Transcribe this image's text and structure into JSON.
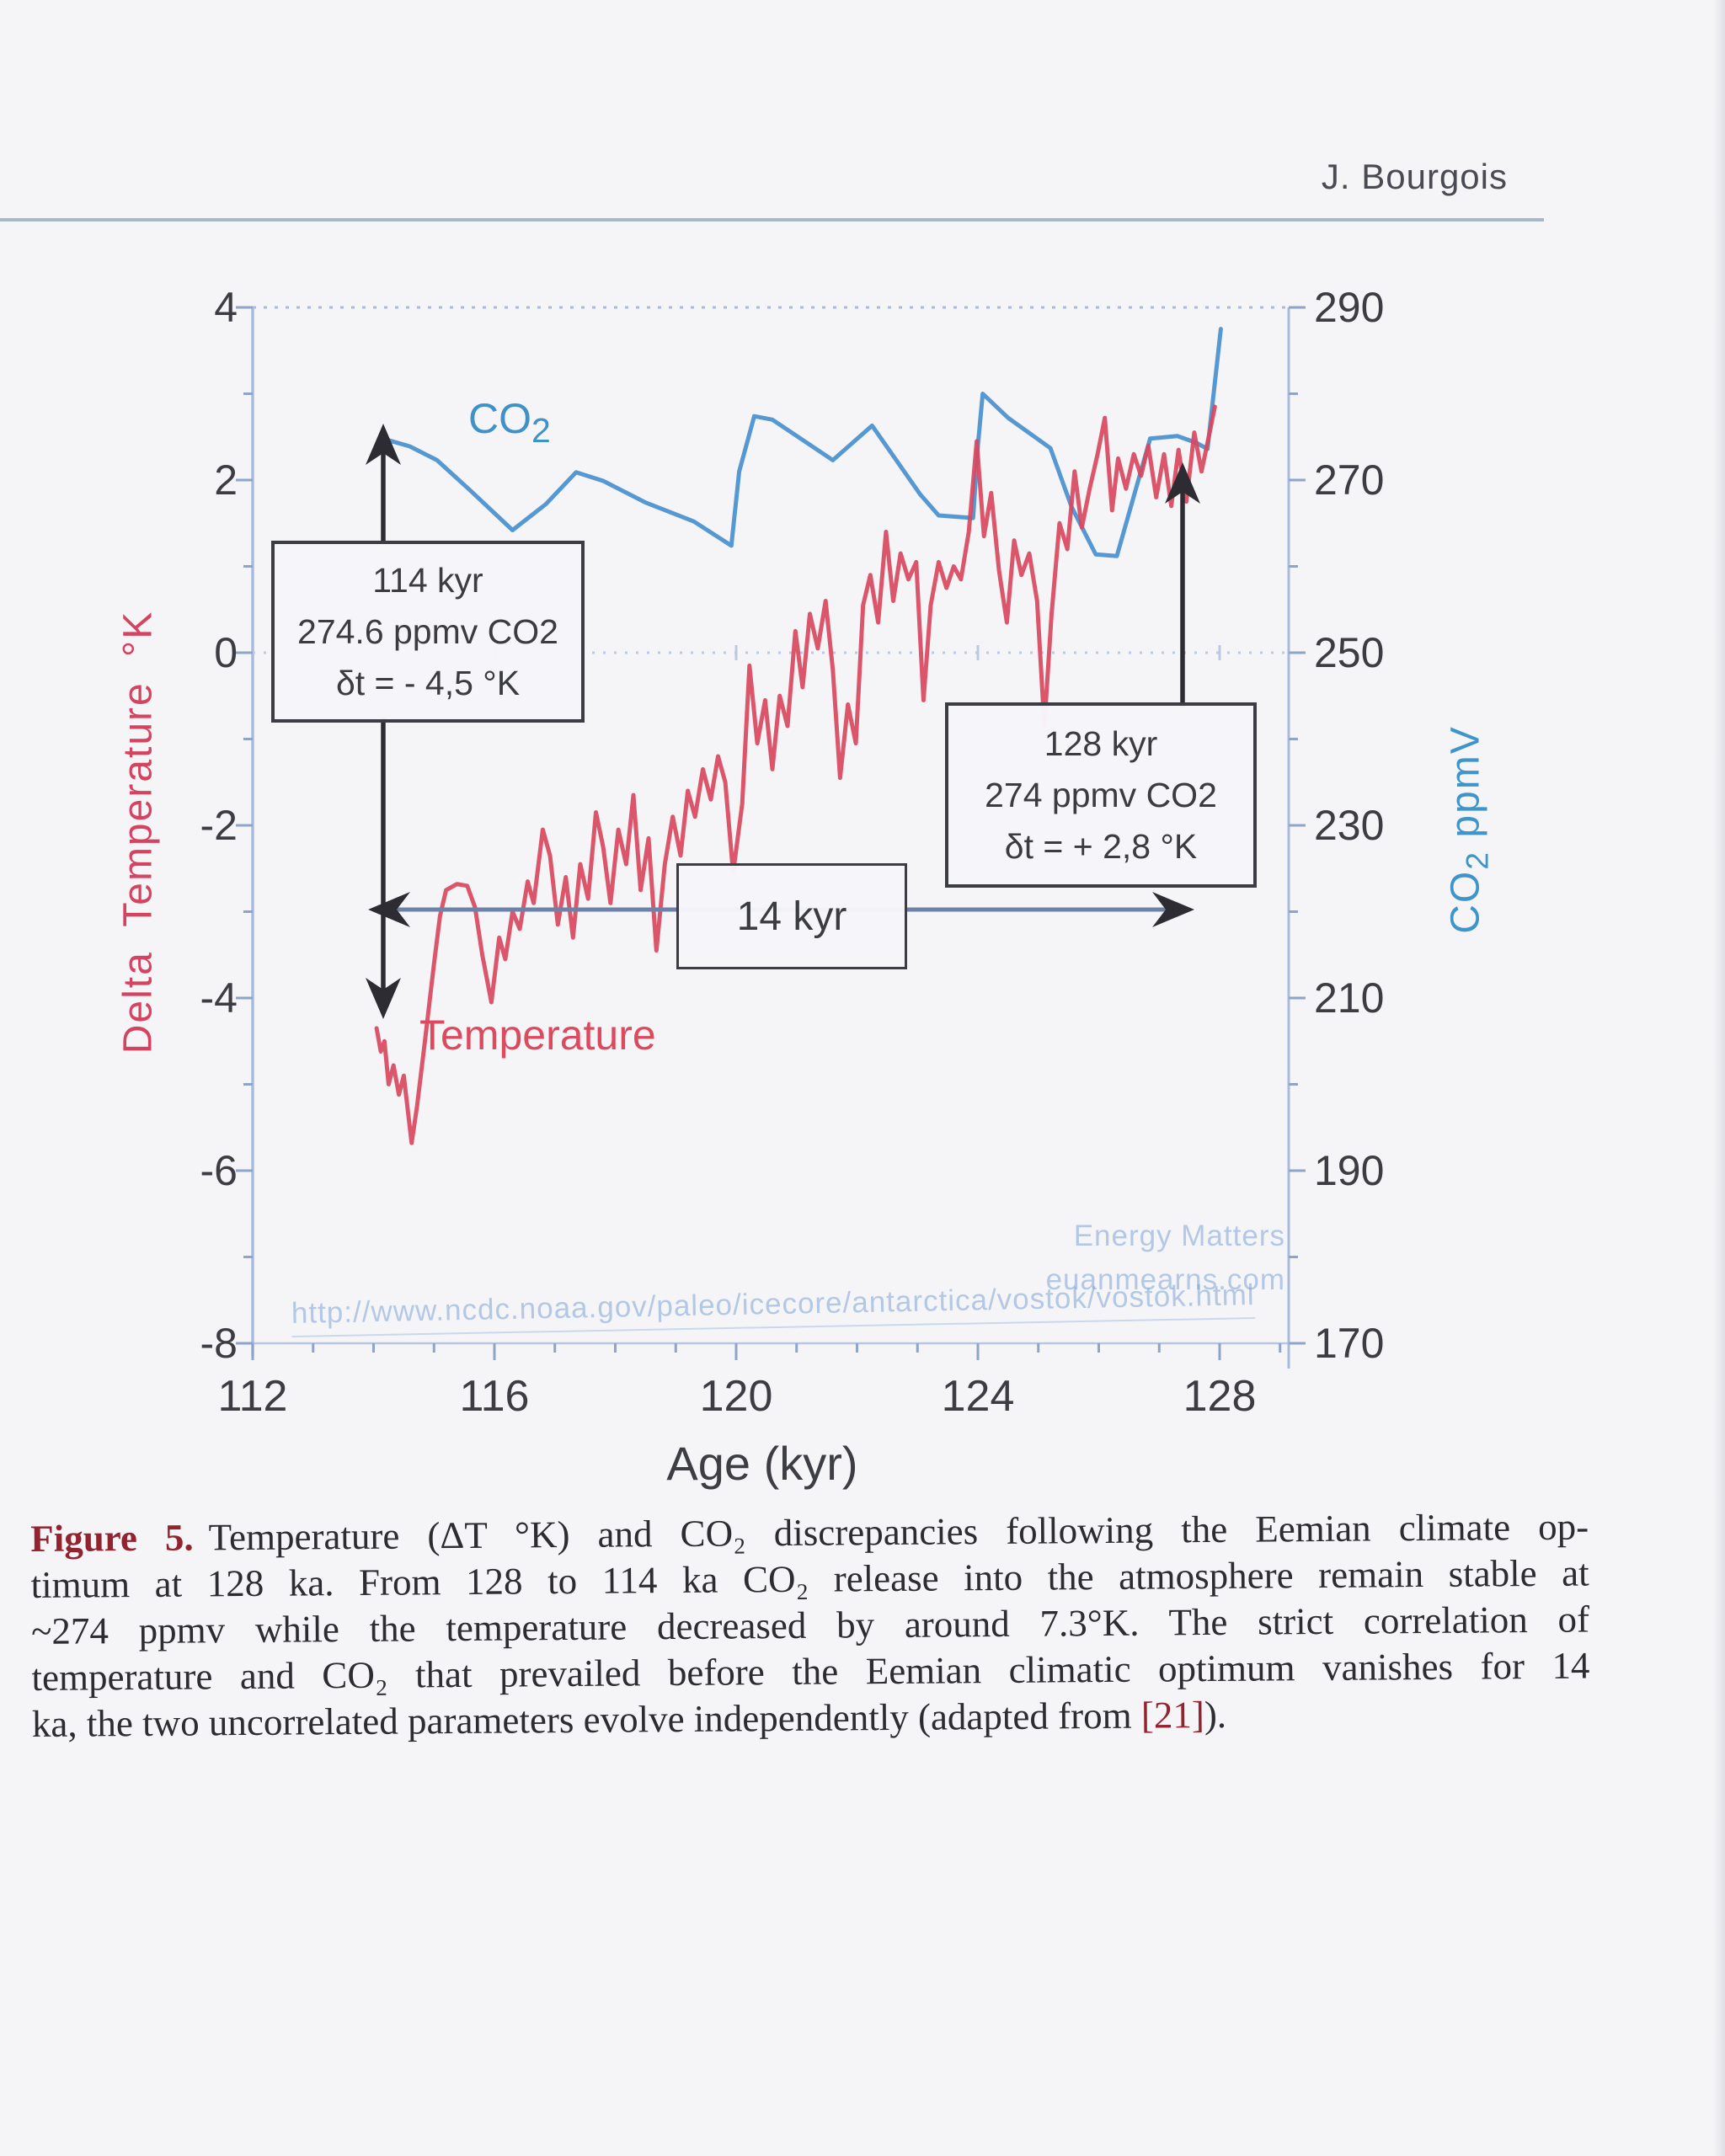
{
  "page": {
    "header": {
      "author": "J. Bourgois"
    }
  },
  "figure": {
    "labels": {
      "co2_prefix": "CO",
      "co2_sub": "2",
      "temperature": "Temperature"
    },
    "right_axis": {
      "prefix": "CO",
      "sub": "2",
      "suffix": " ppmV"
    },
    "watermark": {
      "line1": "Energy Matters",
      "line2": "euanmearns.com",
      "url": "http://www.ncdc.noaa.gov/paleo/icecore/antarctica/vostok/vostok.html"
    }
  },
  "chart_data": {
    "type": "line",
    "title": "",
    "xlabel": "Age (kyr)",
    "ylabel_left": "Delta Temperature °K",
    "ylabel_right": "CO2 ppmV",
    "x_range": [
      112,
      129.15
    ],
    "y_left_range": [
      -8,
      4
    ],
    "y_right_range": [
      170,
      290
    ],
    "x_ticks": [
      112,
      116,
      120,
      124,
      128
    ],
    "y_left_ticks": [
      4,
      2,
      0,
      -2,
      -4,
      -6,
      -8
    ],
    "y_right_ticks": [
      290,
      270,
      250,
      230,
      210,
      190,
      170
    ],
    "grid": "dashed zero line only",
    "legend_position": "inline curve labels",
    "annotations": {
      "box_114": {
        "lines": [
          "114 kyr",
          "274.6 ppmv CO2",
          "δt = - 4,5 °K"
        ]
      },
      "box_128": {
        "lines": [
          "128 kyr",
          "274 ppmv CO2",
          "δt = + 2,8 °K"
        ]
      },
      "span_label": "14 kyr"
    },
    "series": [
      {
        "name": "CO2",
        "axis": "right",
        "units": "ppmv",
        "color": "#478fce",
        "points": [
          [
            114.25,
            274.6
          ],
          [
            114.6,
            273.9
          ],
          [
            115.05,
            272.3
          ],
          [
            115.6,
            268.8
          ],
          [
            116.3,
            264.2
          ],
          [
            116.85,
            267.2
          ],
          [
            117.35,
            270.9
          ],
          [
            117.8,
            269.9
          ],
          [
            118.5,
            267.4
          ],
          [
            119.3,
            265.2
          ],
          [
            119.92,
            262.4
          ],
          [
            120.05,
            271.0
          ],
          [
            120.3,
            277.4
          ],
          [
            120.6,
            277.0
          ],
          [
            121.6,
            272.3
          ],
          [
            122.25,
            276.3
          ],
          [
            123.05,
            268.3
          ],
          [
            123.35,
            265.9
          ],
          [
            123.92,
            265.6
          ],
          [
            124.0,
            274.0
          ],
          [
            124.08,
            280.0
          ],
          [
            124.5,
            277.2
          ],
          [
            125.2,
            273.7
          ],
          [
            125.55,
            266.9
          ],
          [
            125.95,
            261.4
          ],
          [
            126.3,
            261.2
          ],
          [
            126.85,
            274.8
          ],
          [
            127.3,
            275.1
          ],
          [
            127.62,
            274.3
          ],
          [
            127.8,
            273.6
          ],
          [
            128.02,
            287.5
          ]
        ]
      },
      {
        "name": "Temperature",
        "axis": "left",
        "units": "°K",
        "color": "#d9485e",
        "points": [
          [
            114.05,
            -4.35
          ],
          [
            114.12,
            -4.62
          ],
          [
            114.18,
            -4.5
          ],
          [
            114.25,
            -5.0
          ],
          [
            114.33,
            -4.78
          ],
          [
            114.42,
            -5.12
          ],
          [
            114.5,
            -4.9
          ],
          [
            114.63,
            -5.68
          ],
          [
            114.72,
            -5.25
          ],
          [
            114.85,
            -4.5
          ],
          [
            115.0,
            -3.6
          ],
          [
            115.1,
            -3.05
          ],
          [
            115.2,
            -2.75
          ],
          [
            115.38,
            -2.68
          ],
          [
            115.55,
            -2.7
          ],
          [
            115.68,
            -2.95
          ],
          [
            115.8,
            -3.5
          ],
          [
            115.95,
            -4.05
          ],
          [
            116.08,
            -3.3
          ],
          [
            116.18,
            -3.55
          ],
          [
            116.3,
            -3.0
          ],
          [
            116.42,
            -3.2
          ],
          [
            116.55,
            -2.65
          ],
          [
            116.65,
            -2.9
          ],
          [
            116.8,
            -2.05
          ],
          [
            116.92,
            -2.35
          ],
          [
            117.05,
            -3.15
          ],
          [
            117.18,
            -2.6
          ],
          [
            117.3,
            -3.3
          ],
          [
            117.42,
            -2.45
          ],
          [
            117.55,
            -2.85
          ],
          [
            117.68,
            -1.85
          ],
          [
            117.8,
            -2.25
          ],
          [
            117.92,
            -2.9
          ],
          [
            118.05,
            -2.05
          ],
          [
            118.18,
            -2.45
          ],
          [
            118.3,
            -1.65
          ],
          [
            118.42,
            -2.75
          ],
          [
            118.55,
            -2.15
          ],
          [
            118.68,
            -3.45
          ],
          [
            118.82,
            -2.45
          ],
          [
            118.95,
            -1.9
          ],
          [
            119.08,
            -2.35
          ],
          [
            119.2,
            -1.6
          ],
          [
            119.32,
            -1.9
          ],
          [
            119.45,
            -1.35
          ],
          [
            119.58,
            -1.7
          ],
          [
            119.7,
            -1.2
          ],
          [
            119.82,
            -1.5
          ],
          [
            119.95,
            -2.55
          ],
          [
            120.1,
            -1.75
          ],
          [
            120.22,
            -0.15
          ],
          [
            120.35,
            -1.05
          ],
          [
            120.48,
            -0.55
          ],
          [
            120.6,
            -1.35
          ],
          [
            120.72,
            -0.5
          ],
          [
            120.85,
            -0.85
          ],
          [
            120.98,
            0.25
          ],
          [
            121.1,
            -0.4
          ],
          [
            121.22,
            0.45
          ],
          [
            121.35,
            0.05
          ],
          [
            121.48,
            0.6
          ],
          [
            121.6,
            -0.2
          ],
          [
            121.72,
            -1.45
          ],
          [
            121.85,
            -0.6
          ],
          [
            121.98,
            -1.05
          ],
          [
            122.1,
            0.55
          ],
          [
            122.22,
            0.9
          ],
          [
            122.35,
            0.35
          ],
          [
            122.48,
            1.4
          ],
          [
            122.6,
            0.6
          ],
          [
            122.72,
            1.15
          ],
          [
            122.85,
            0.85
          ],
          [
            122.98,
            1.05
          ],
          [
            123.1,
            -0.55
          ],
          [
            123.22,
            0.55
          ],
          [
            123.35,
            1.05
          ],
          [
            123.48,
            0.75
          ],
          [
            123.6,
            1.0
          ],
          [
            123.72,
            0.85
          ],
          [
            123.85,
            1.4
          ],
          [
            123.98,
            2.45
          ],
          [
            124.1,
            1.35
          ],
          [
            124.22,
            1.85
          ],
          [
            124.35,
            0.95
          ],
          [
            124.48,
            0.35
          ],
          [
            124.6,
            1.3
          ],
          [
            124.72,
            0.9
          ],
          [
            124.85,
            1.15
          ],
          [
            124.98,
            0.6
          ],
          [
            125.1,
            -0.85
          ],
          [
            125.22,
            0.45
          ],
          [
            125.35,
            1.5
          ],
          [
            125.48,
            1.2
          ],
          [
            125.6,
            2.1
          ],
          [
            125.72,
            1.45
          ],
          [
            125.85,
            1.9
          ],
          [
            125.98,
            2.3
          ],
          [
            126.1,
            2.72
          ],
          [
            126.22,
            1.65
          ],
          [
            126.32,
            2.25
          ],
          [
            126.45,
            1.9
          ],
          [
            126.58,
            2.3
          ],
          [
            126.7,
            2.05
          ],
          [
            126.82,
            2.4
          ],
          [
            126.95,
            1.8
          ],
          [
            127.08,
            2.3
          ],
          [
            127.2,
            1.7
          ],
          [
            127.32,
            2.35
          ],
          [
            127.45,
            1.75
          ],
          [
            127.58,
            2.55
          ],
          [
            127.7,
            2.1
          ],
          [
            127.82,
            2.5
          ],
          [
            127.92,
            2.85
          ]
        ]
      }
    ]
  },
  "caption": {
    "label": "Figure 5.",
    "line1": "Temperature (ΔT °K) and CO₂ discrepancies following the Eemian climate op-",
    "line2": "timum at 128 ka. From 128 to 114 ka CO₂ release into the atmosphere remain stable at",
    "line3": "~274 ppmv while the temperature decreased by around 7.3°K. The strict correlation of",
    "line4": "temperature and CO₂ that prevailed before the Eemian climatic optimum vanishes for 14",
    "line5_pre": "ka, the two uncorrelated parameters evolve independently (adapted from ",
    "line5_ref": "[21]",
    "line5_post": ")."
  }
}
